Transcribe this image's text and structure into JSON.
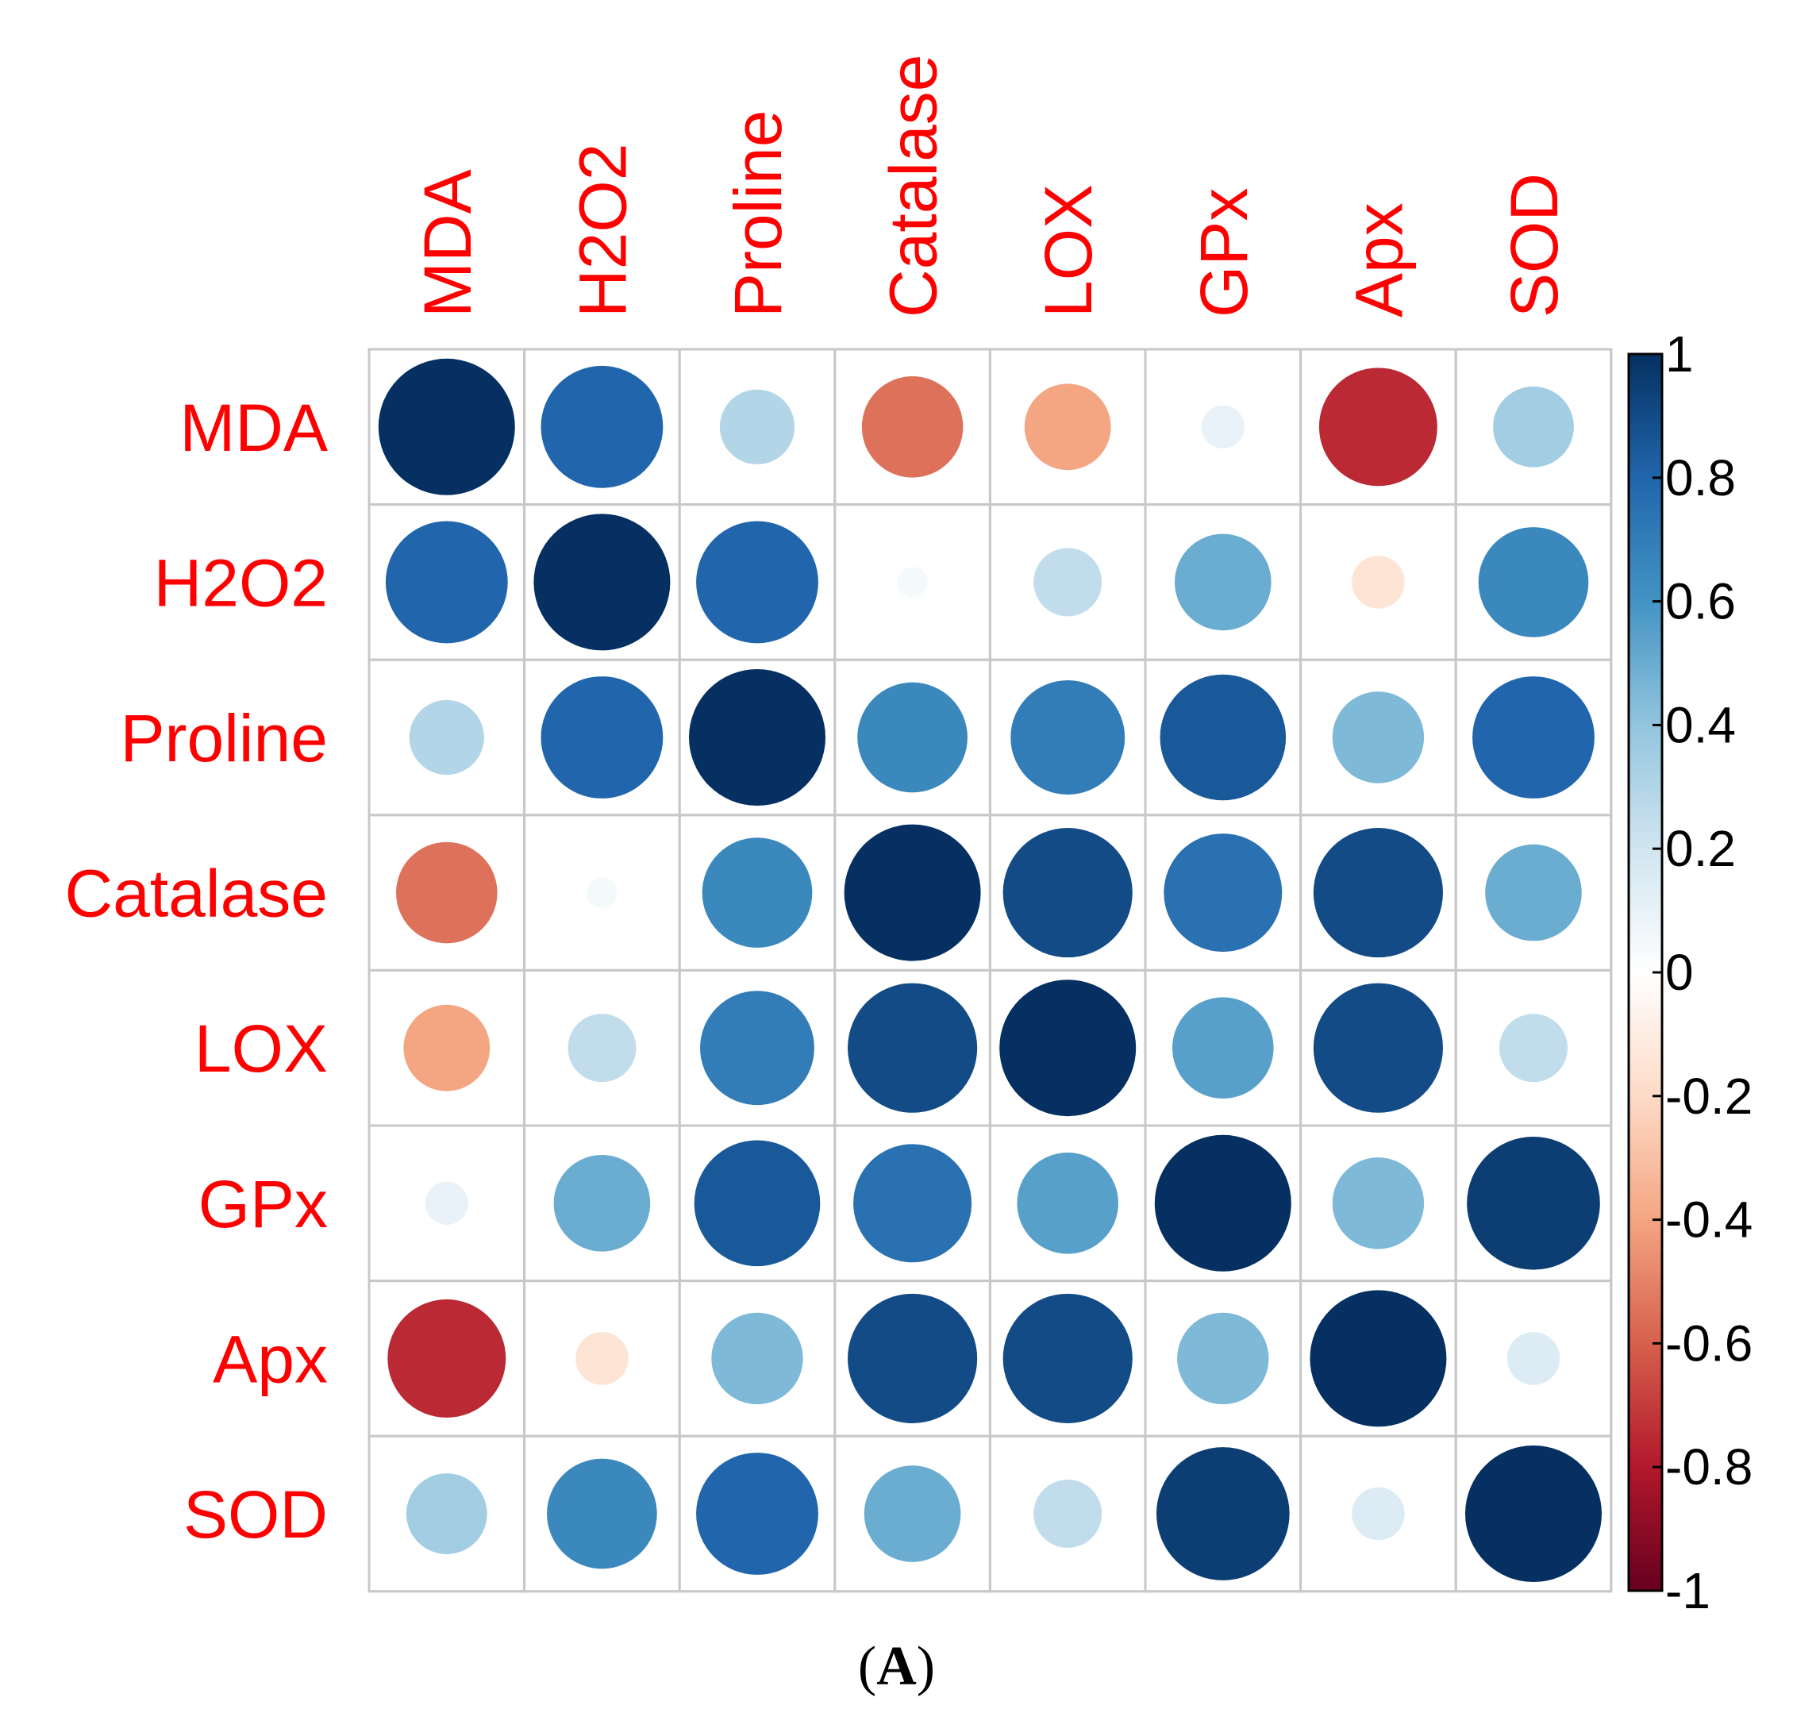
{
  "chart_data": {
    "type": "heatmap",
    "subtype": "correlation-matrix-circles",
    "variables": [
      "MDA",
      "H2O2",
      "Proline",
      "Catalase",
      "LOX",
      "GPx",
      "Apx",
      "SOD"
    ],
    "matrix": [
      [
        1.0,
        0.8,
        0.3,
        -0.55,
        -0.4,
        0.1,
        -0.75,
        0.35
      ],
      [
        0.8,
        1.0,
        0.8,
        0.05,
        0.25,
        0.5,
        -0.15,
        0.65
      ],
      [
        0.3,
        0.8,
        1.0,
        0.65,
        0.7,
        0.85,
        0.45,
        0.8
      ],
      [
        -0.55,
        0.05,
        0.65,
        1.0,
        0.9,
        0.75,
        0.9,
        0.5
      ],
      [
        -0.4,
        0.25,
        0.7,
        0.9,
        1.0,
        0.55,
        0.9,
        0.25
      ],
      [
        0.1,
        0.5,
        0.85,
        0.75,
        0.55,
        1.0,
        0.45,
        0.95
      ],
      [
        -0.75,
        -0.15,
        0.45,
        0.9,
        0.9,
        0.45,
        1.0,
        0.15
      ],
      [
        0.35,
        0.65,
        0.8,
        0.5,
        0.25,
        0.95,
        0.15,
        1.0
      ]
    ],
    "colorbar": {
      "ticks": [
        "1",
        "0.8",
        "0.6",
        "0.4",
        "0.2",
        "0",
        "-0.2",
        "-0.4",
        "-0.6",
        "-0.8",
        "-1"
      ],
      "range": [
        -1,
        1
      ]
    },
    "label_color": "#ff0000",
    "grid": true
  },
  "colors": {
    "palette": [
      "#67001f",
      "#b2182b",
      "#d6604d",
      "#f4a582",
      "#fddbc7",
      "#ffffff",
      "#d1e5f0",
      "#92c5de",
      "#4393c3",
      "#2166ac",
      "#053061"
    ],
    "grid": "#c8c8c8",
    "label": "#ff0000"
  },
  "panel_label": "A"
}
